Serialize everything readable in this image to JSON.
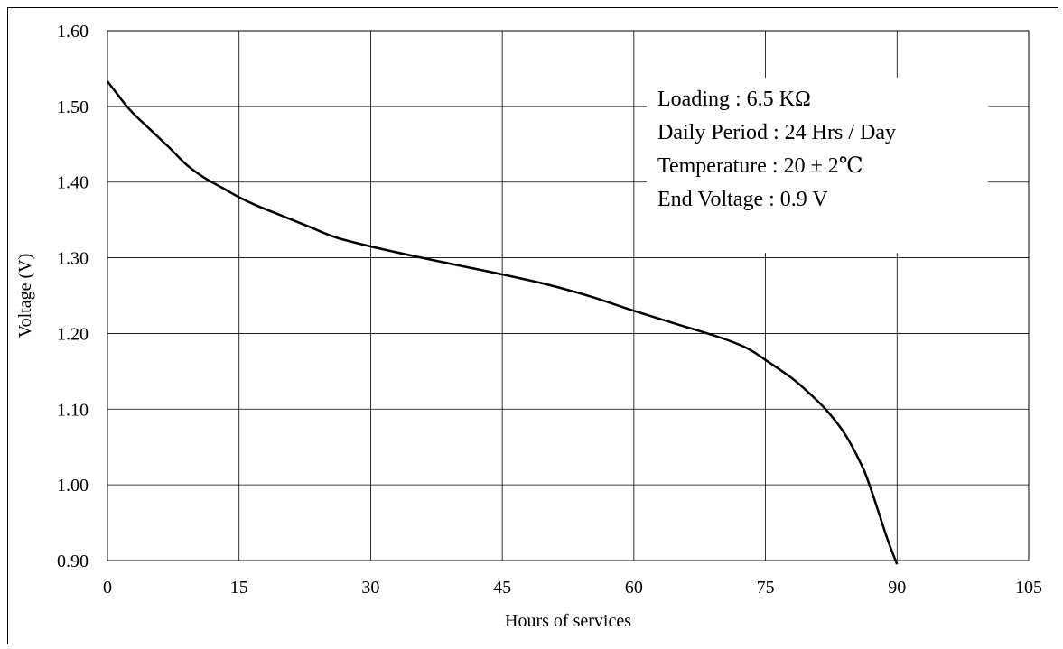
{
  "chart_data": {
    "type": "line",
    "title": "",
    "xlabel": "Hours of services",
    "ylabel": "Voltage  (V)",
    "xlim": [
      0,
      105
    ],
    "ylim": [
      0.9,
      1.6
    ],
    "x_ticks": [
      "0",
      "15",
      "30",
      "45",
      "60",
      "75",
      "90",
      "105"
    ],
    "y_ticks": [
      "0.90",
      "1.00",
      "1.10",
      "1.20",
      "1.30",
      "1.40",
      "1.50",
      "1.60"
    ],
    "grid": true,
    "annotations": [
      "Loading : 6.5 KΩ",
      "Daily Period : 24 Hrs / Day",
      "Temperature : 20 ± 2℃",
      "End Voltage :  0.9 V"
    ],
    "series": [
      {
        "color": "#000000",
        "x": [
          0,
          1,
          2,
          3,
          5,
          7,
          9,
          11,
          13,
          15,
          17,
          20,
          23,
          26,
          30,
          35,
          40,
          45,
          50,
          55,
          60,
          65,
          70,
          73,
          75,
          78,
          80,
          82,
          84,
          86,
          87,
          88,
          89,
          90
        ],
        "y": [
          1.533,
          1.518,
          1.503,
          1.49,
          1.468,
          1.446,
          1.423,
          1.406,
          1.393,
          1.38,
          1.369,
          1.355,
          1.341,
          1.327,
          1.315,
          1.302,
          1.29,
          1.278,
          1.265,
          1.249,
          1.23,
          1.212,
          1.194,
          1.18,
          1.165,
          1.141,
          1.121,
          1.098,
          1.068,
          1.025,
          0.995,
          0.96,
          0.925,
          0.895
        ]
      }
    ]
  }
}
